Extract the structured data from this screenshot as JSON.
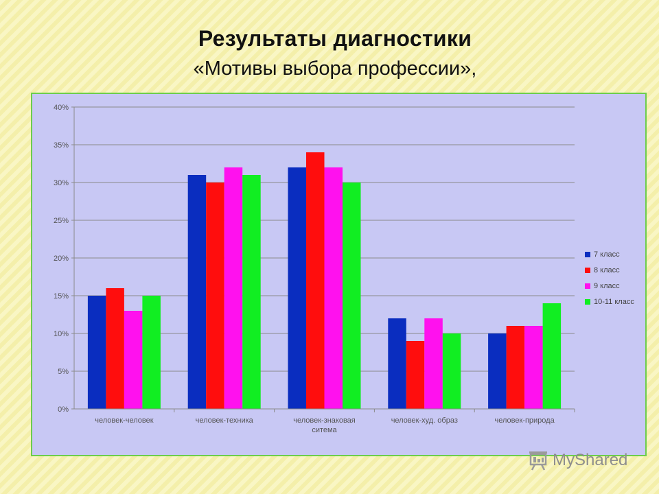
{
  "slide": {
    "title": "Результаты диагностики",
    "subtitle": "«Мотивы выбора профессии»,"
  },
  "watermark": {
    "text": "MyShared",
    "icon": "presentation-board-icon"
  },
  "colors": {
    "series": [
      "#0a2dbf",
      "#ff0d0d",
      "#ff11ee",
      "#11ee22"
    ],
    "chart_background": "#c8c8f4",
    "frame_border": "#6ccd4c",
    "page_background": "#f7f3b4",
    "gridline": "#8a8a8a",
    "tick_text": "#555555"
  },
  "chart_data": {
    "type": "bar",
    "title": "",
    "xlabel": "",
    "ylabel": "",
    "ylim": [
      0,
      40
    ],
    "y_ticks": [
      0,
      5,
      10,
      15,
      20,
      25,
      30,
      35,
      40
    ],
    "y_tick_labels": [
      "0%",
      "5%",
      "10%",
      "15%",
      "20%",
      "25%",
      "30%",
      "35%",
      "40%"
    ],
    "grid": true,
    "legend_position": "right",
    "categories": [
      [
        "человек-человек"
      ],
      [
        "человек-техника"
      ],
      [
        "человек-знаковая",
        "ситема"
      ],
      [
        "человек-худ. образ"
      ],
      [
        "человек-природа"
      ]
    ],
    "series": [
      {
        "name": "7 класс",
        "values": [
          15,
          31,
          32,
          12,
          10
        ]
      },
      {
        "name": "8 класс",
        "values": [
          16,
          30,
          34,
          9,
          11
        ]
      },
      {
        "name": "9 класс",
        "values": [
          13,
          32,
          32,
          12,
          11
        ]
      },
      {
        "name": "10-11 класс",
        "values": [
          15,
          31,
          30,
          10,
          14
        ]
      }
    ]
  }
}
